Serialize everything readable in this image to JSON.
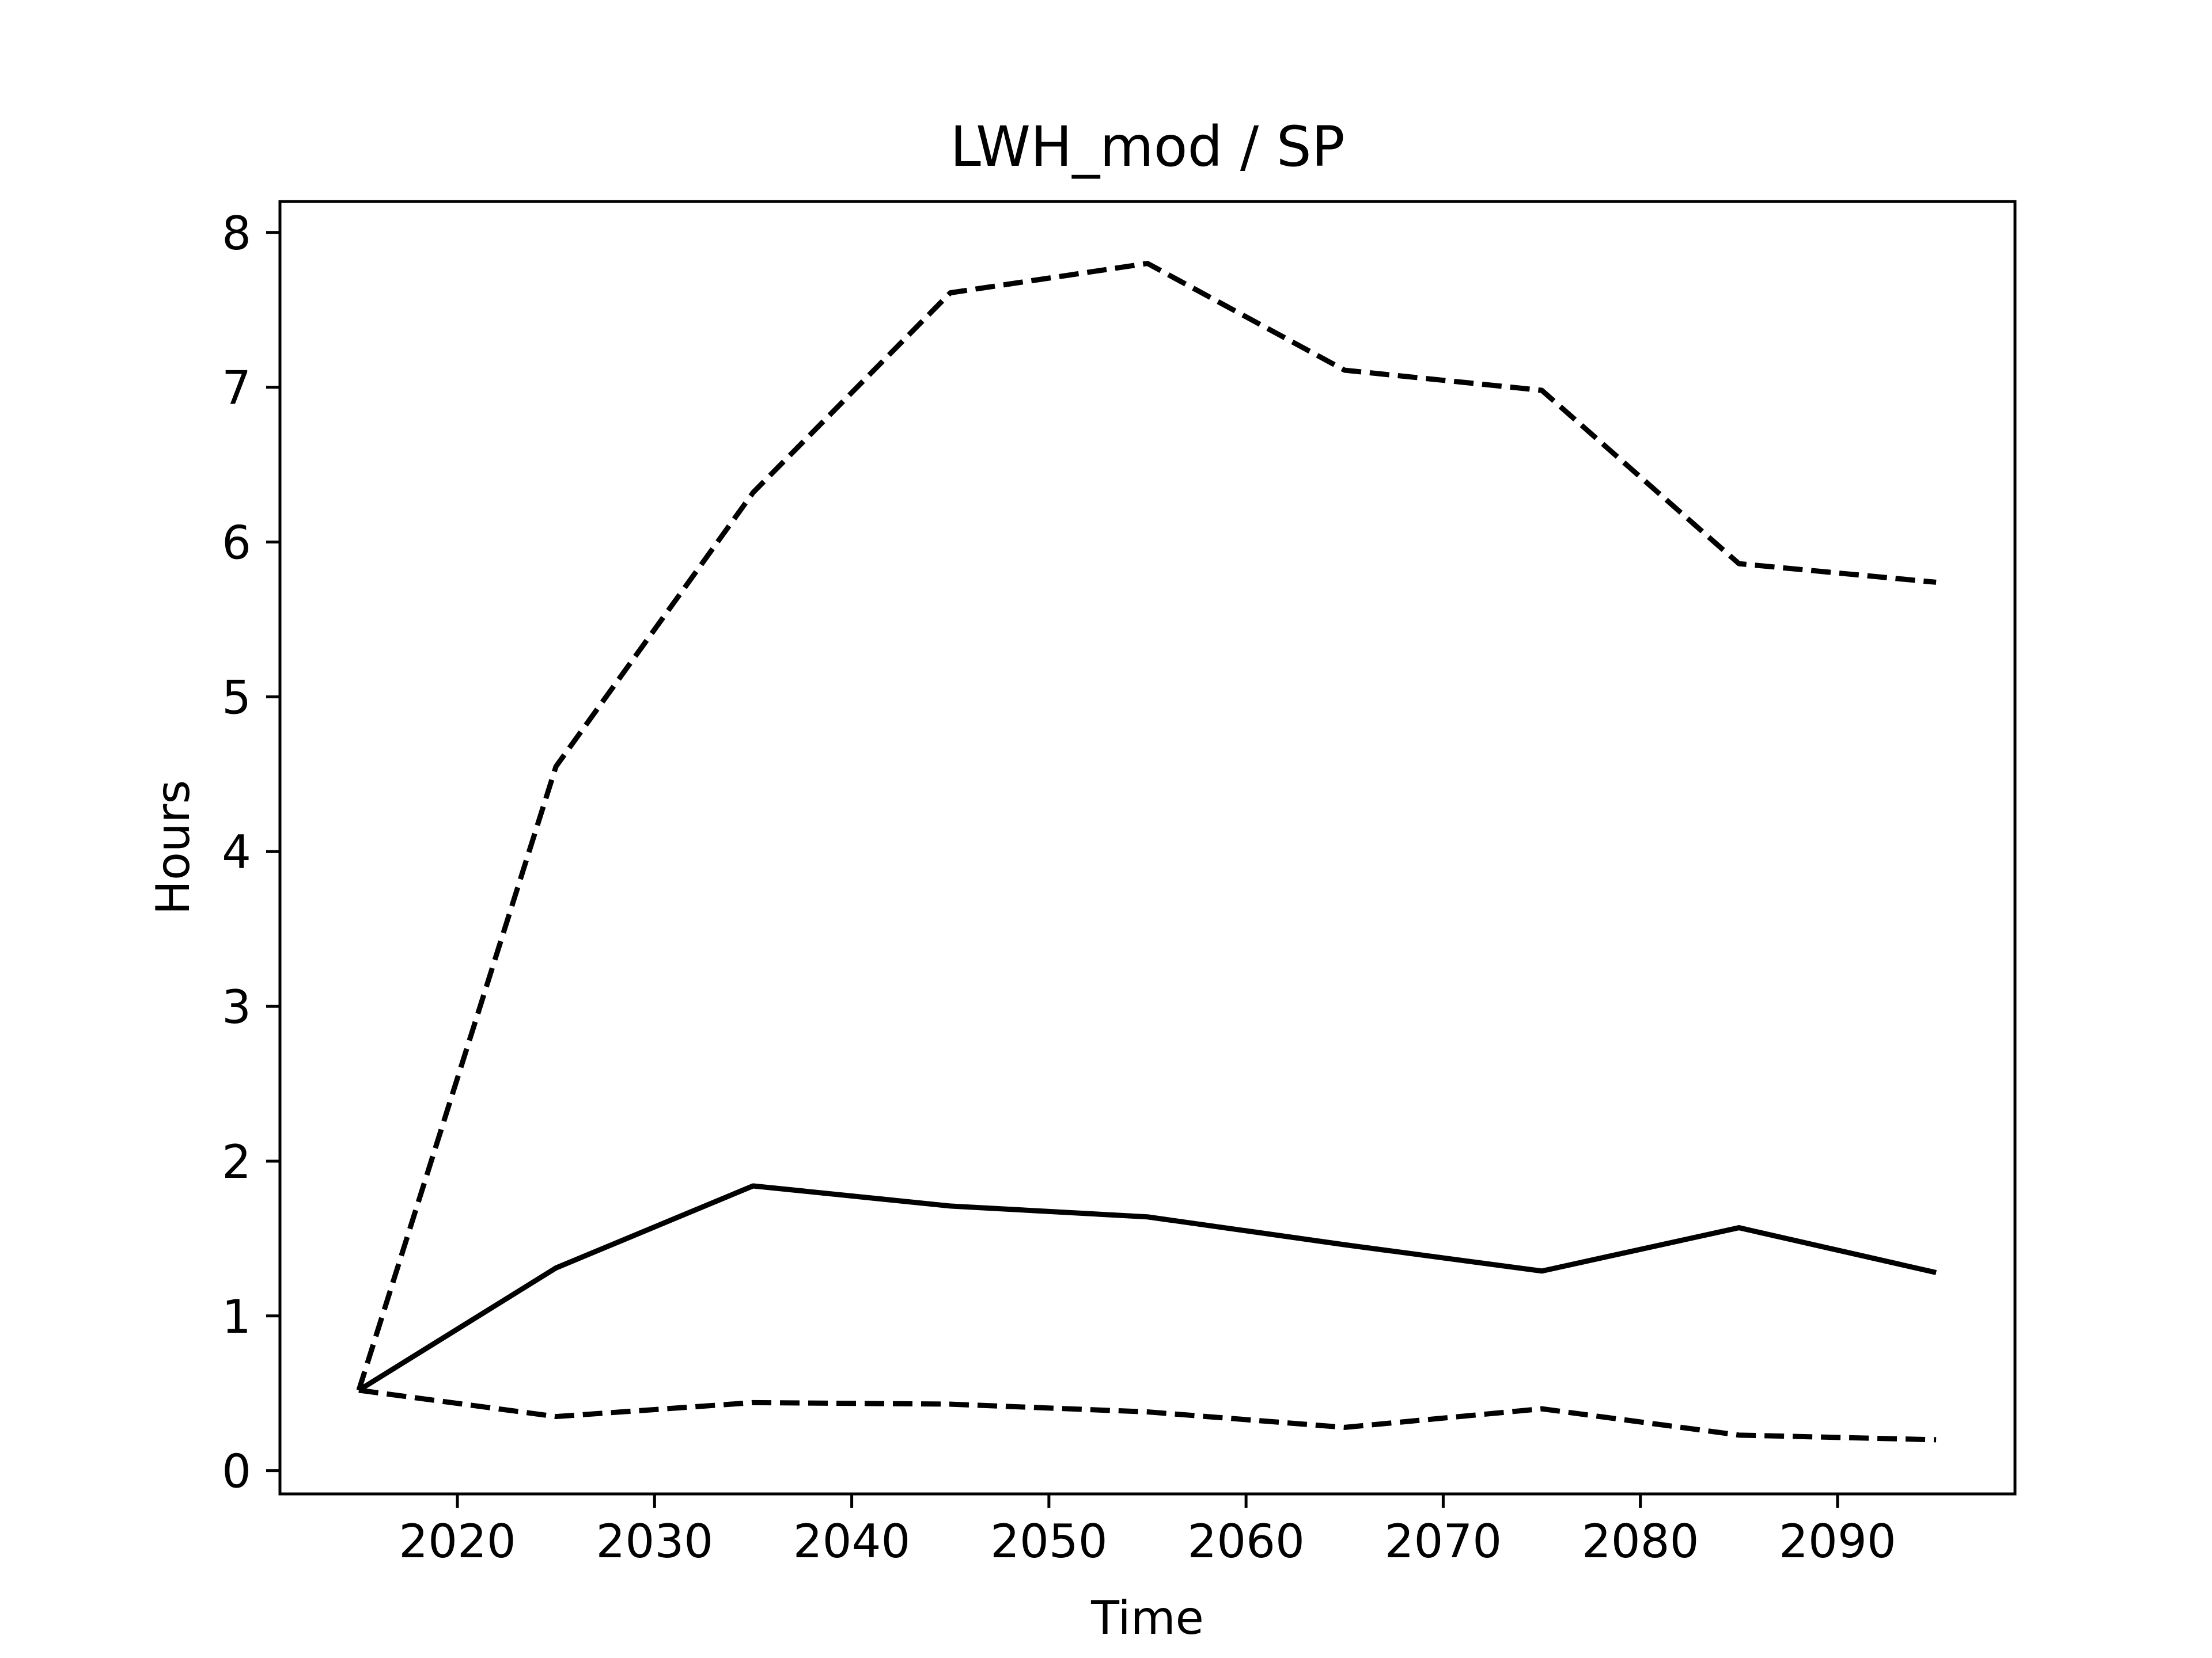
{
  "chart_data": {
    "type": "line",
    "title": "LWH_mod / SP",
    "xlabel": "Time",
    "ylabel": "Hours",
    "xlim": [
      2011,
      2099
    ],
    "ylim": [
      -0.15,
      8.2
    ],
    "xticks": [
      2020,
      2030,
      2040,
      2050,
      2060,
      2070,
      2080,
      2090
    ],
    "yticks": [
      0,
      1,
      2,
      3,
      4,
      5,
      6,
      7,
      8
    ],
    "grid": false,
    "legend": "none",
    "x": [
      2015,
      2025,
      2035,
      2045,
      2055,
      2065,
      2075,
      2085,
      2095
    ],
    "series": [
      {
        "style": "solid",
        "color": "#000000",
        "values": [
          0.52,
          1.31,
          1.84,
          1.71,
          1.64,
          1.46,
          1.29,
          1.57,
          1.28
        ]
      },
      {
        "style": "dashed",
        "color": "#000000",
        "values": [
          0.52,
          4.55,
          6.32,
          7.61,
          7.8,
          7.11,
          6.98,
          5.86,
          5.74
        ]
      },
      {
        "style": "dashed",
        "color": "#000000",
        "values": [
          0.52,
          0.35,
          0.44,
          0.43,
          0.38,
          0.28,
          0.4,
          0.23,
          0.2
        ]
      }
    ]
  }
}
